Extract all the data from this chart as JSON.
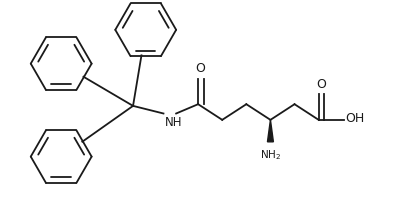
{
  "background_color": "#ffffff",
  "line_color": "#1a1a1a",
  "line_width": 1.3,
  "font_size": 7.5,
  "figsize": [
    4.14,
    2.16
  ],
  "dpi": 100,
  "xlim": [
    0,
    9.6
  ],
  "ylim": [
    0,
    5.0
  ]
}
